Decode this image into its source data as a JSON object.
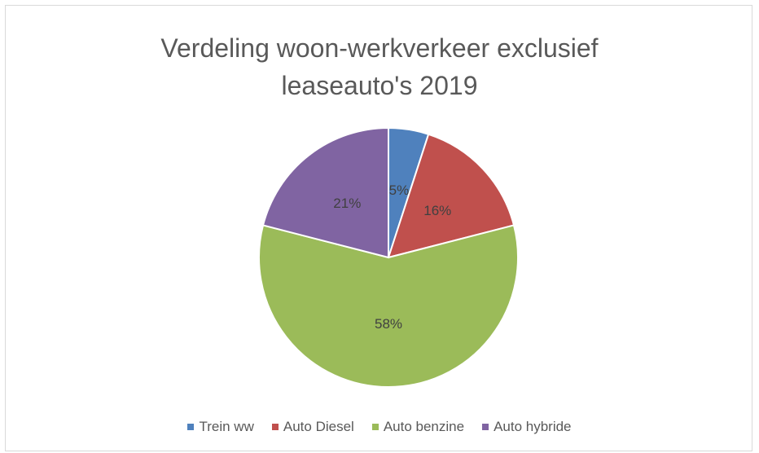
{
  "chart_data": {
    "type": "pie",
    "title": "Verdeling woon-werkverkeer exclusief leaseauto's 2019",
    "categories": [
      "Trein ww",
      "Auto Diesel",
      "Auto benzine",
      "Auto hybride"
    ],
    "values": [
      5,
      16,
      58,
      21
    ],
    "value_labels": [
      "5%",
      "16%",
      "58%",
      "21%"
    ],
    "colors": [
      "#4f81bd",
      "#c0504d",
      "#9bbb59",
      "#8064a2"
    ],
    "legend": "bottom"
  }
}
